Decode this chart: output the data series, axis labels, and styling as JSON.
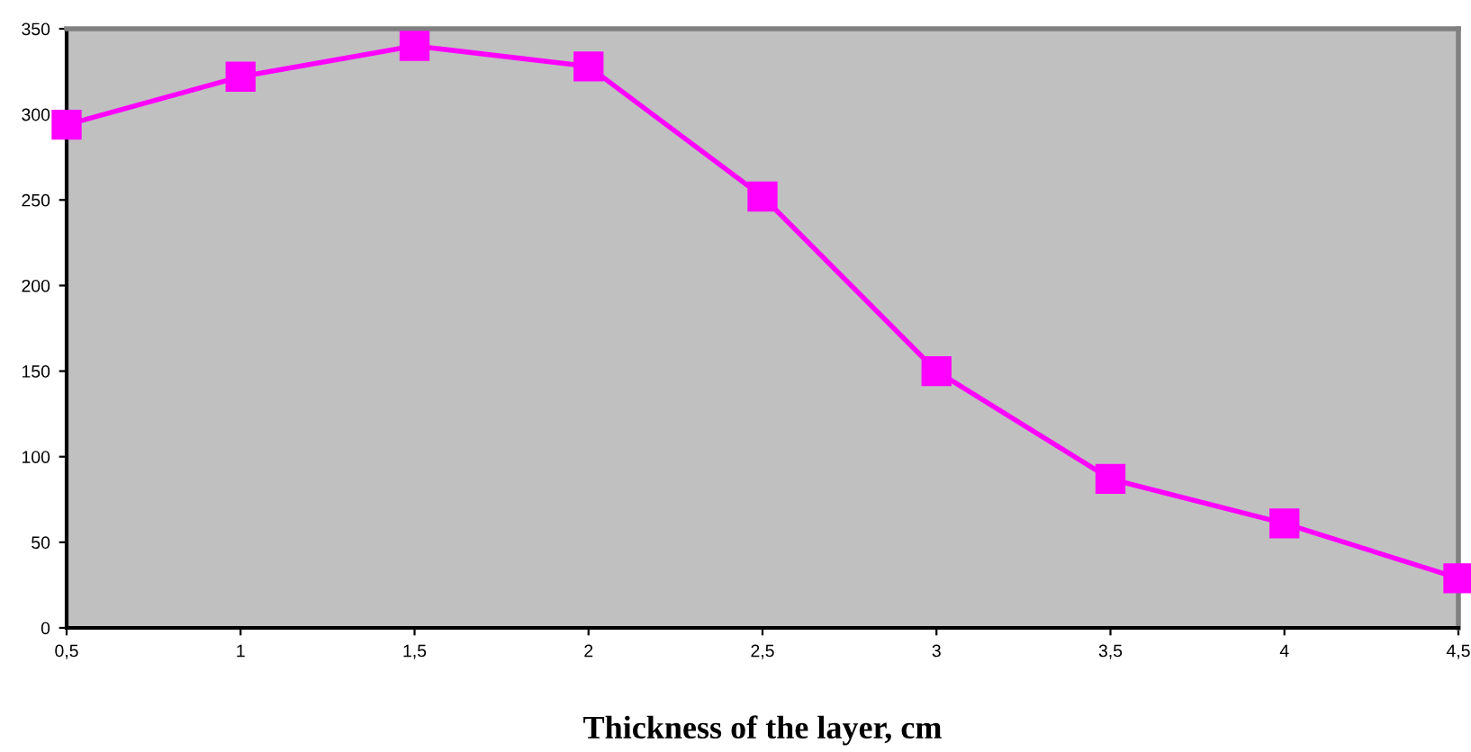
{
  "chart_data": {
    "type": "line",
    "xlabel": "Thickness of the layer, cm",
    "x": [
      0.5,
      1,
      1.5,
      2,
      2.5,
      3,
      3.5,
      4,
      4.5
    ],
    "series": [
      {
        "color": "#ff00ff",
        "values": [
          294,
          322,
          340,
          328,
          252,
          150,
          87,
          61,
          29
        ]
      }
    ],
    "xlim": [
      0.5,
      4.5
    ],
    "xticks": [
      {
        "value": 0.5,
        "label": "0,5"
      },
      1,
      {
        "value": 1.5,
        "label": "1,5"
      },
      2,
      {
        "value": 2.5,
        "label": "2,5"
      },
      3,
      {
        "value": 3.5,
        "label": "3,5"
      },
      4,
      {
        "value": 4.5,
        "label": "4,5"
      }
    ],
    "ylim": [
      0,
      350
    ],
    "yticks": [
      0,
      50,
      100,
      150,
      200,
      250,
      300,
      350
    ],
    "grid": false,
    "legend": false,
    "marker": "square",
    "line_style": "solid"
  }
}
